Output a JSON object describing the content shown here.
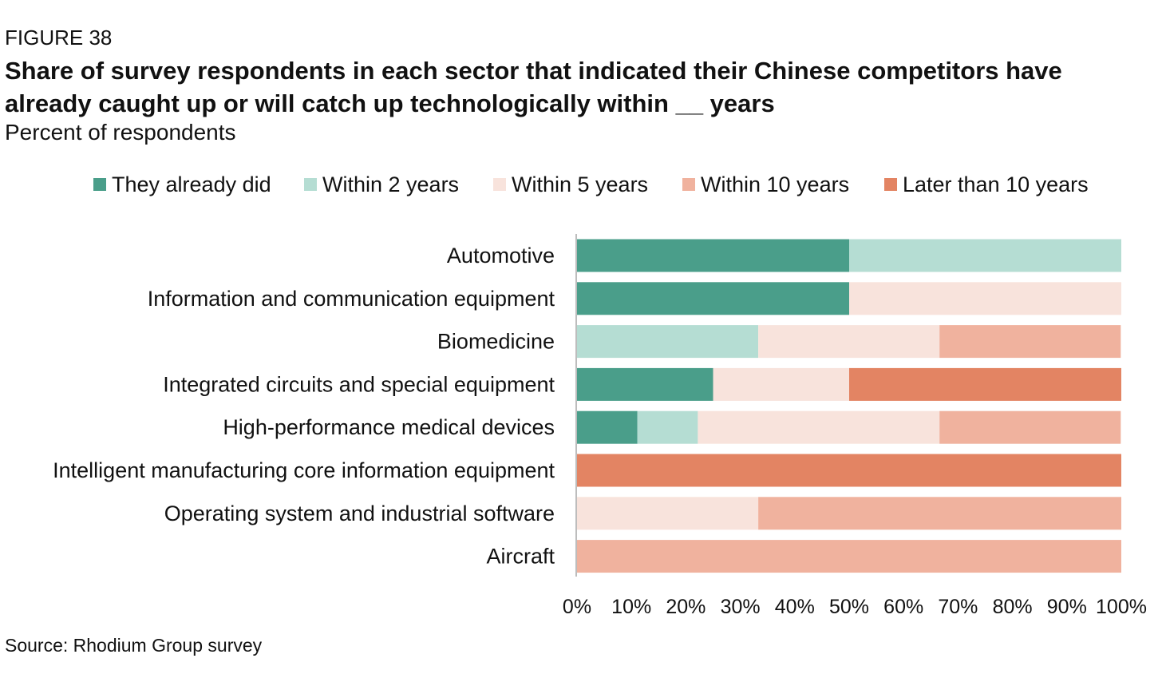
{
  "figure_label": "FIGURE 38",
  "title": "Share of survey respondents in each sector that indicated their Chinese competitors have already caught up or will catch up technologically within __ years",
  "subtitle": "Percent of respondents",
  "source": "Source: Rhodium Group survey",
  "chart_data": {
    "type": "bar",
    "orientation": "horizontal",
    "stacked": true,
    "categories": [
      "Automotive",
      "Information and communication equipment",
      "Biomedicine",
      "Integrated circuits and special equipment",
      "High-performance medical devices",
      "Intelligent manufacturing core information equipment",
      "Operating system and industrial software",
      "Aircraft"
    ],
    "series": [
      {
        "name": "They already did",
        "color": "#4a9e8a",
        "values": [
          50,
          50,
          0,
          25,
          11.1,
          0,
          0,
          0
        ]
      },
      {
        "name": "Within 2 years",
        "color": "#b5ddd3",
        "values": [
          50,
          0,
          33.3,
          0,
          11.1,
          0,
          0,
          0
        ]
      },
      {
        "name": "Within 5 years",
        "color": "#f8e3dc",
        "values": [
          0,
          50,
          33.3,
          25,
          44.4,
          0,
          33.3,
          0
        ]
      },
      {
        "name": "Within 10 years",
        "color": "#f0b29e",
        "values": [
          0,
          0,
          33.3,
          0,
          33.3,
          0,
          66.7,
          100
        ]
      },
      {
        "name": "Later than 10 years",
        "color": "#e38463",
        "values": [
          0,
          0,
          0,
          50,
          0,
          100,
          0,
          0
        ]
      }
    ],
    "x_ticks": [
      "0%",
      "10%",
      "20%",
      "30%",
      "40%",
      "50%",
      "60%",
      "70%",
      "80%",
      "90%",
      "100%"
    ],
    "xlim": [
      0,
      100
    ],
    "grid": false,
    "legend_position": "top"
  }
}
